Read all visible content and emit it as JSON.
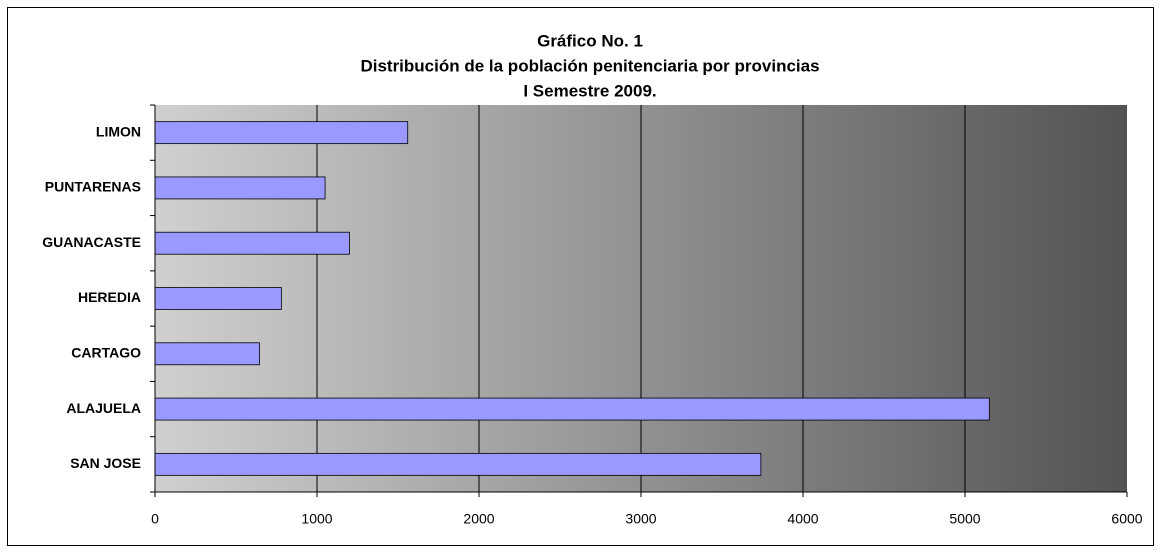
{
  "chart_data": {
    "type": "bar",
    "orientation": "horizontal",
    "title": [
      "Gráfico No. 1",
      "Distribución de la población penitenciaria  por provincias",
      "I Semestre 2009."
    ],
    "categories": [
      "LIMON",
      "PUNTARENAS",
      "GUANACASTE",
      "HEREDIA",
      "CARTAGO",
      "ALAJUELA",
      "SAN JOSE"
    ],
    "values": [
      1560,
      1050,
      1200,
      780,
      645,
      5150,
      3740
    ],
    "color": "#9999ff",
    "xlim": [
      0,
      6000
    ],
    "xticks": [
      0,
      1000,
      2000,
      3000,
      4000,
      5000,
      6000
    ],
    "grid": true
  }
}
